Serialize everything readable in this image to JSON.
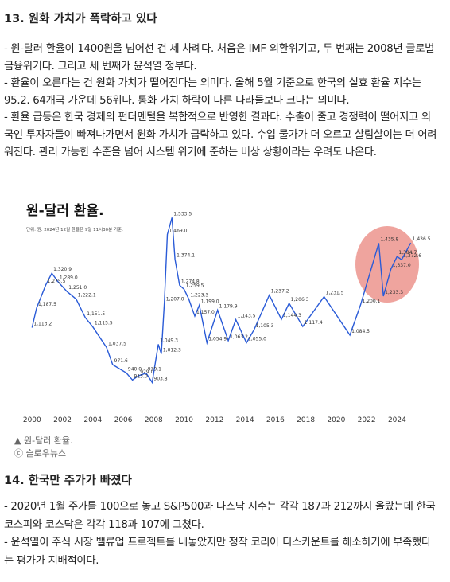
{
  "heading1": "13. 원화 가치가 폭락하고 있다",
  "paragraphs1": [
    "- 원-달러 환율이 1400원을 넘어선 건 세 차례다. 처음은 IMF 외환위기고, 두 번째는 2008년 글로벌 금융위기다. 그리고 세 번째가 윤석열 정부다.",
    "- 환율이 오른다는 건 원화 가치가 떨어진다는 의미다. 올해 5월 기준으로 한국의 실효 환율 지수는 95.2. 64개국 가운데 56위다. 통화 가치 하락이 다른 나라들보다 크다는 의미다.",
    "- 환율 급등은 한국 경제의 펀더멘털을 복합적으로 반영한 결과다. 수출이 줄고 경쟁력이 떨어지고 외국인 투자자들이 빠져나가면서 원화 가치가 급락하고 있다. 수입 물가가 더 오르고 살림살이는 더 어려워진다. 관리 가능한 수준을 넘어 시스템 위기에 준하는 비상 상황이라는 우려도 나온다."
  ],
  "chart_data": {
    "type": "line",
    "title": "원-달러 환율.",
    "subtitle": "단위: 원. 2024년 12월 환율은 9일 11시30분 기준.",
    "x": [
      2000.0,
      2000.3,
      2000.9,
      2001.3,
      2001.7,
      2002.3,
      2002.9,
      2003.5,
      2004.0,
      2004.9,
      2005.3,
      2006.2,
      2006.6,
      2007.0,
      2007.5,
      2007.9,
      2008.3,
      2008.5,
      2008.7,
      2008.9,
      2009.2,
      2009.4,
      2009.7,
      2010.0,
      2010.3,
      2010.7,
      2011.0,
      2011.5,
      2012.2,
      2012.9,
      2013.4,
      2014.1,
      2014.6,
      2015.6,
      2016.4,
      2016.9,
      2017.8,
      2019.2,
      2020.9,
      2021.6,
      2022.8,
      2023.1,
      2023.6,
      2024.0,
      2024.3,
      2024.9
    ],
    "values": [
      1113.2,
      1187.5,
      1275.5,
      1320.9,
      1289.0,
      1251.0,
      1222.1,
      1151.5,
      1115.5,
      1037.5,
      971.6,
      940.0,
      913.0,
      929.0,
      939.1,
      903.8,
      1049.3,
      1012.3,
      1207.0,
      1469.0,
      1533.5,
      1374.1,
      1274.8,
      1259.5,
      1223.3,
      1157.0,
      1199.0,
      1054.9,
      1179.9,
      1063.2,
      1143.5,
      1055.0,
      1105.3,
      1237.2,
      1144.3,
      1206.3,
      1117.4,
      1231.5,
      1084.5,
      1200.1,
      1435.8,
      1233.3,
      1337.0,
      1384.7,
      1372.6,
      1436.5
    ],
    "value_labels": [
      "1,113.2",
      "1,187.5",
      "1,275.5",
      "1,320.9",
      "1,289.0",
      "1,251.0",
      "1,222.1",
      "1,151.5",
      "1,115.5",
      "1,037.5",
      "971.6",
      "940.0",
      "913.0",
      "929.0",
      "939.1",
      "903.8",
      "1,049.3",
      "1,012.3",
      "1,207.0",
      "1,469.0",
      "1,533.5",
      "1,374.1",
      "1,274.8",
      "1,259.5",
      "1,223.3",
      "1,157.0",
      "1,199.0",
      "1,054.9",
      "1,179.9",
      "1,063.2",
      "1,143.5",
      "1,055.0",
      "1,105.3",
      "1,237.2",
      "1,144.3",
      "1,206.3",
      "1,117.4",
      "1,231.5",
      "1,084.5",
      "1,200.1",
      "1,435.8",
      "1,233.3",
      "1,337.0",
      "1,384.7",
      "1,372.6",
      "1,436.5"
    ],
    "color": "#2a5bd7",
    "xlim": [
      1999.2,
      2025.6
    ],
    "xticks": [
      2000,
      2002,
      2004,
      2006,
      2008,
      2010,
      2012,
      2014,
      2016,
      2018,
      2020,
      2022,
      2024
    ],
    "ylim": [
      850,
      1580
    ]
  },
  "caption": "▲ 원-달러 환율.",
  "credit": "ⓒ 슬로우뉴스",
  "heading2": "14. 한국만 주가가 빠졌다",
  "paragraphs2": [
    "- 2020년 1월 주가를 100으로 놓고 S&P500과 나스닥 지수는 각각 187과 212까지 올랐는데 한국 코스피와 코스닥은 각각 118과 107에 그쳤다.",
    "- 윤석열이 주식 시장 밸류업 프로젝트를 내놓았지만 정작 코리아 디스카운트를 해소하기에 부족했다는 평가가 지배적이다."
  ]
}
